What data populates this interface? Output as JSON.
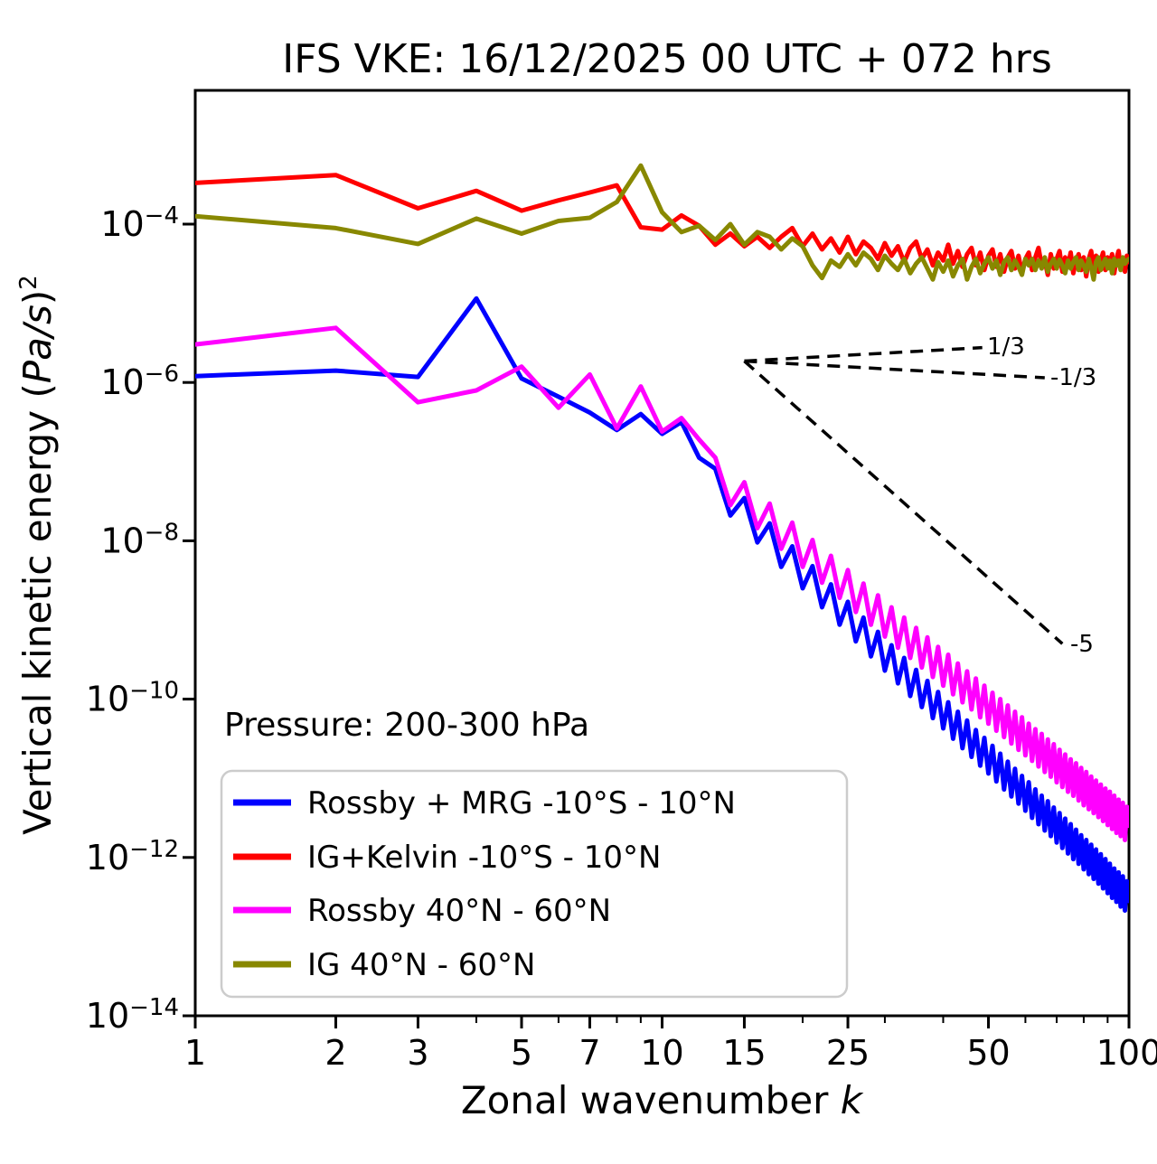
{
  "title": "IFS VKE: 16/12/2025 00 UTC + 072 hrs",
  "annotation": {
    "pressure": "Pressure: 200-300 hPa"
  },
  "axes": {
    "xlabel_text": "Zonal wavenumber ",
    "xlabel_var": "k",
    "ylabel_prefix": "Vertical kinetic energy (",
    "ylabel_italic": "Pa/s",
    "ylabel_suffix": ")",
    "ylabel_sup": "2",
    "x_major_ticks": [
      1,
      2,
      3,
      5,
      7,
      10,
      15,
      25,
      50,
      100
    ],
    "x_minor_ticks": [
      4,
      6,
      8,
      9,
      20,
      30,
      40,
      60,
      70,
      80,
      90
    ],
    "y_tick_exponents": [
      -4,
      -6,
      -8,
      -10,
      -12,
      -14
    ],
    "xlim": [
      1,
      100
    ]
  },
  "slope_guides": [
    {
      "label": "1/3",
      "k_start": 15,
      "log10E_start": -5.73,
      "k_end": 48.5,
      "log10E_end": -5.56
    },
    {
      "label": "-1/3",
      "k_start": 15,
      "log10E_start": -5.73,
      "k_end": 66,
      "log10E_end": -5.94
    },
    {
      "label": "-5",
      "k_start": 15,
      "log10E_start": -5.73,
      "k_end": 72,
      "log10E_end": -9.3
    }
  ],
  "chart_data": {
    "type": "line",
    "title": "IFS VKE: 16/12/2025 00 UTC + 072 hrs",
    "xlabel": "Zonal wavenumber k",
    "ylabel": "Vertical kinetic energy (Pa/s)^2",
    "x_scale": "log",
    "y_scale": "log",
    "xlim": [
      1,
      100
    ],
    "ylim_exponents": [
      -14,
      -2.3
    ],
    "grid": false,
    "legend_position": "lower-left",
    "y_encoding": "log10 of vertical kinetic energy in (Pa/s)^2",
    "k": [
      1,
      2,
      3,
      4,
      5,
      6,
      7,
      8,
      9,
      10,
      11,
      12,
      13,
      14,
      15,
      16,
      17,
      18,
      19,
      20,
      21,
      22,
      23,
      24,
      25,
      26,
      27,
      28,
      29,
      30,
      31,
      32,
      33,
      34,
      35,
      36,
      37,
      38,
      39,
      40,
      41,
      42,
      43,
      44,
      45,
      46,
      47,
      48,
      49,
      50,
      51,
      52,
      53,
      54,
      55,
      56,
      57,
      58,
      59,
      60,
      61,
      62,
      63,
      64,
      65,
      66,
      67,
      68,
      69,
      70,
      71,
      72,
      73,
      74,
      75,
      76,
      77,
      78,
      79,
      80,
      81,
      82,
      83,
      84,
      85,
      86,
      87,
      88,
      89,
      90,
      91,
      92,
      93,
      94,
      95,
      96,
      97,
      98,
      99,
      100
    ],
    "series": [
      {
        "name": "Rossby + MRG -10°S - 10°N",
        "color": "#0000ff",
        "log10_values": [
          -5.92,
          -5.85,
          -5.93,
          -4.94,
          -5.95,
          -6.18,
          -6.38,
          -6.6,
          -6.4,
          -6.65,
          -6.5,
          -6.95,
          -7.09,
          -7.68,
          -7.46,
          -8.02,
          -7.78,
          -8.33,
          -8.07,
          -8.6,
          -8.32,
          -8.84,
          -8.55,
          -9.06,
          -8.77,
          -9.27,
          -8.97,
          -9.46,
          -9.15,
          -9.64,
          -9.32,
          -9.8,
          -9.48,
          -9.96,
          -9.63,
          -10.1,
          -9.77,
          -10.24,
          -9.91,
          -10.37,
          -10.04,
          -10.5,
          -10.16,
          -10.62,
          -10.27,
          -10.73,
          -10.39,
          -10.84,
          -10.49,
          -10.94,
          -10.59,
          -11.04,
          -10.69,
          -11.14,
          -10.79,
          -11.23,
          -10.88,
          -11.32,
          -10.97,
          -11.41,
          -11.05,
          -11.5,
          -11.14,
          -11.58,
          -11.22,
          -11.66,
          -11.29,
          -11.73,
          -11.37,
          -11.81,
          -11.44,
          -11.88,
          -11.51,
          -11.95,
          -11.58,
          -12.02,
          -11.65,
          -12.08,
          -11.72,
          -12.15,
          -11.78,
          -12.21,
          -11.84,
          -12.27,
          -11.9,
          -12.33,
          -11.96,
          -12.39,
          -12.02,
          -12.45,
          -12.08,
          -12.51,
          -12.14,
          -12.56,
          -12.19,
          -12.62,
          -12.24,
          -12.67,
          -12.3,
          -12.55
        ]
      },
      {
        "name": "IG+Kelvin -10°S - 10°N",
        "color": "#ff0000",
        "log10_values": [
          -3.48,
          -3.38,
          -3.8,
          -3.58,
          -3.83,
          -3.7,
          -3.6,
          -3.51,
          -4.04,
          -4.07,
          -3.89,
          -4.02,
          -4.26,
          -4.12,
          -4.28,
          -4.16,
          -4.3,
          -4.16,
          -4.05,
          -4.28,
          -4.12,
          -4.32,
          -4.18,
          -4.36,
          -4.16,
          -4.38,
          -4.22,
          -4.3,
          -4.44,
          -4.24,
          -4.4,
          -4.28,
          -4.48,
          -4.3,
          -4.22,
          -4.44,
          -4.32,
          -4.52,
          -4.36,
          -4.46,
          -4.26,
          -4.5,
          -4.34,
          -4.54,
          -4.38,
          -4.3,
          -4.52,
          -4.36,
          -4.58,
          -4.4,
          -4.32,
          -4.54,
          -4.38,
          -4.6,
          -4.42,
          -4.34,
          -4.56,
          -4.4,
          -4.62,
          -4.44,
          -4.36,
          -4.58,
          -4.42,
          -4.3,
          -4.52,
          -4.46,
          -4.64,
          -4.38,
          -4.56,
          -4.44,
          -4.34,
          -4.6,
          -4.42,
          -4.52,
          -4.36,
          -4.62,
          -4.46,
          -4.38,
          -4.58,
          -4.42,
          -4.66,
          -4.44,
          -4.34,
          -4.56,
          -4.4,
          -4.6,
          -4.46,
          -4.36,
          -4.58,
          -4.42,
          -4.52,
          -4.38,
          -4.62,
          -4.44,
          -4.34,
          -4.56,
          -4.46,
          -4.6,
          -4.4,
          -4.48
        ]
      },
      {
        "name": "Rossby 40°N - 60°N",
        "color": "#ff00ff",
        "log10_values": [
          -5.52,
          -5.31,
          -6.25,
          -6.1,
          -5.8,
          -6.32,
          -5.9,
          -6.58,
          -6.05,
          -6.62,
          -6.45,
          -6.72,
          -6.95,
          -7.55,
          -7.26,
          -7.84,
          -7.53,
          -8.1,
          -7.77,
          -8.33,
          -7.99,
          -8.53,
          -8.19,
          -8.72,
          -8.37,
          -8.9,
          -8.54,
          -9.06,
          -8.69,
          -9.21,
          -8.84,
          -9.35,
          -8.97,
          -9.48,
          -9.1,
          -9.6,
          -9.22,
          -9.72,
          -9.34,
          -9.83,
          -9.44,
          -9.94,
          -9.55,
          -10.04,
          -9.65,
          -10.13,
          -9.74,
          -10.23,
          -9.83,
          -10.31,
          -9.92,
          -10.4,
          -10.0,
          -10.48,
          -10.08,
          -10.56,
          -10.16,
          -10.64,
          -10.23,
          -10.71,
          -10.31,
          -10.78,
          -10.38,
          -10.85,
          -10.44,
          -10.92,
          -10.51,
          -10.98,
          -10.57,
          -11.05,
          -10.64,
          -11.11,
          -10.7,
          -11.17,
          -10.76,
          -11.22,
          -10.81,
          -11.28,
          -10.87,
          -11.34,
          -10.92,
          -11.39,
          -10.98,
          -11.44,
          -11.03,
          -11.49,
          -11.08,
          -11.54,
          -11.13,
          -11.59,
          -11.17,
          -11.64,
          -11.22,
          -11.69,
          -11.27,
          -11.73,
          -11.31,
          -11.78,
          -11.36,
          -11.6
        ]
      },
      {
        "name": "IG 40°N - 60°N",
        "color": "#888800",
        "log10_values": [
          -3.9,
          -4.05,
          -4.25,
          -3.93,
          -4.12,
          -3.96,
          -3.92,
          -3.72,
          -3.26,
          -3.85,
          -4.1,
          -4.02,
          -4.2,
          -4.0,
          -4.26,
          -4.1,
          -4.16,
          -4.32,
          -4.18,
          -4.28,
          -4.52,
          -4.68,
          -4.46,
          -4.54,
          -4.38,
          -4.52,
          -4.36,
          -4.44,
          -4.58,
          -4.4,
          -4.5,
          -4.58,
          -4.44,
          -4.62,
          -4.5,
          -4.42,
          -4.56,
          -4.7,
          -4.48,
          -4.6,
          -4.46,
          -4.66,
          -4.52,
          -4.44,
          -4.7,
          -4.54,
          -4.44,
          -4.62,
          -4.5,
          -4.42,
          -4.56,
          -4.46,
          -4.64,
          -4.48,
          -4.42,
          -4.58,
          -4.46,
          -4.54,
          -4.64,
          -4.44,
          -4.52,
          -4.44,
          -4.58,
          -4.46,
          -4.56,
          -4.42,
          -4.6,
          -4.5,
          -4.44,
          -4.56,
          -4.45,
          -4.52,
          -4.62,
          -4.46,
          -4.56,
          -4.48,
          -4.42,
          -4.58,
          -4.46,
          -4.52,
          -4.6,
          -4.44,
          -4.55,
          -4.7,
          -4.48,
          -4.42,
          -4.58,
          -4.5,
          -4.44,
          -4.56,
          -4.46,
          -4.62,
          -4.44,
          -4.52,
          -4.46,
          -4.58,
          -4.42,
          -4.5,
          -4.46,
          -4.44
        ]
      }
    ]
  },
  "colors": {
    "axis": "#000000",
    "legend_border": "#cccccc",
    "background": "#ffffff"
  }
}
